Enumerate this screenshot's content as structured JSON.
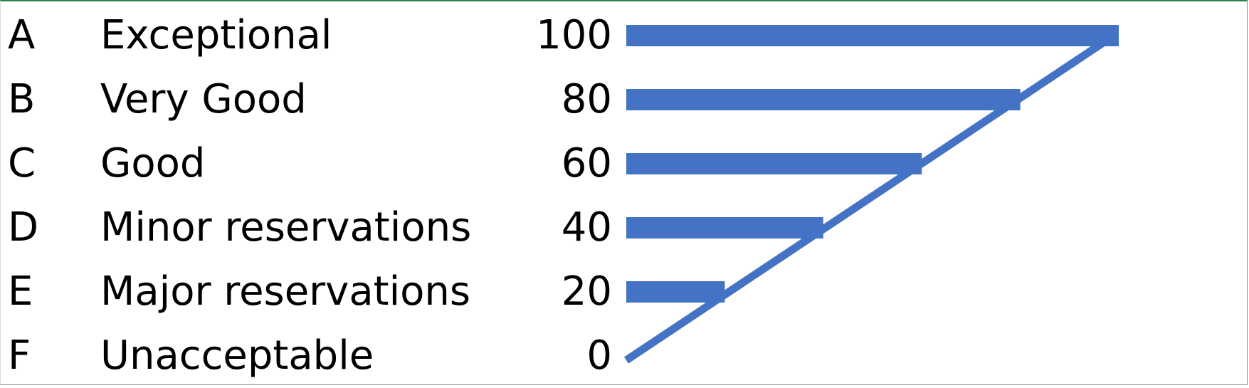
{
  "chart_data": {
    "type": "bar",
    "orientation": "horizontal",
    "bar_color": "#4472c4",
    "line_color": "#4472c4",
    "rows": [
      {
        "grade": "A",
        "description": "Exceptional",
        "score": 100
      },
      {
        "grade": "B",
        "description": "Very Good",
        "score": 80
      },
      {
        "grade": "C",
        "description": "Good",
        "score": 60
      },
      {
        "grade": "D",
        "description": "Minor reservations",
        "score": 40
      },
      {
        "grade": "E",
        "description": "Major reservations",
        "score": 20
      },
      {
        "grade": "F",
        "description": "Unacceptable",
        "score": 0
      }
    ],
    "xlim": [
      0,
      100
    ],
    "trend_line": {
      "from": 0,
      "to": 100
    },
    "grid": false,
    "legend": "none"
  }
}
